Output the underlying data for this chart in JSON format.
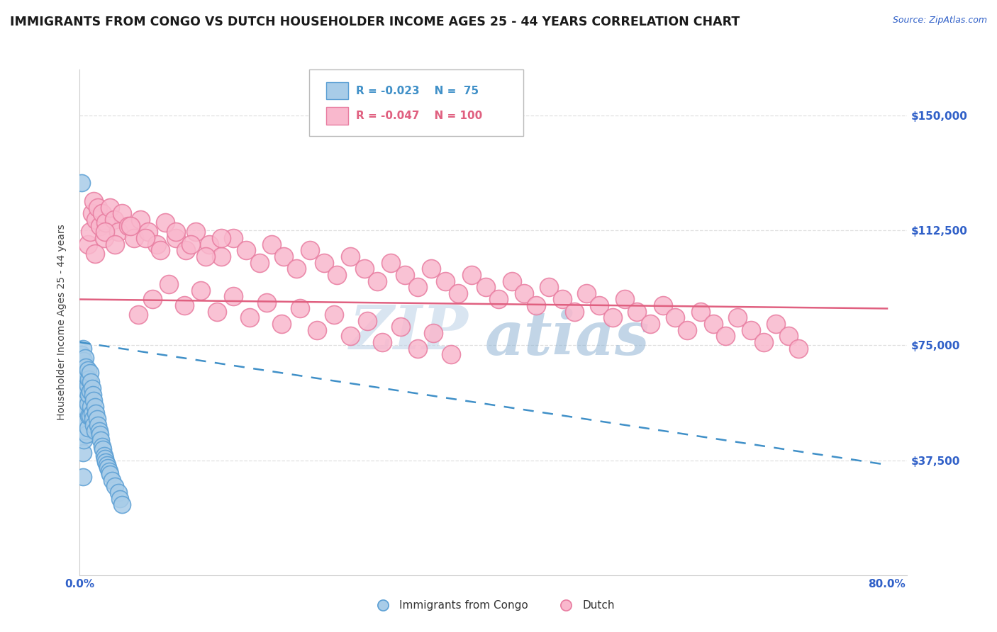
{
  "title": "IMMIGRANTS FROM CONGO VS DUTCH HOUSEHOLDER INCOME AGES 25 - 44 YEARS CORRELATION CHART",
  "source": "Source: ZipAtlas.com",
  "ylabel": "Householder Income Ages 25 - 44 years",
  "xlim": [
    0.0,
    0.82
  ],
  "ylim": [
    0,
    165000
  ],
  "ytick_vals": [
    0,
    37500,
    75000,
    112500,
    150000
  ],
  "ytick_labels": [
    "",
    "$37,500",
    "$75,000",
    "$112,500",
    "$150,000"
  ],
  "xtick_vals": [
    0.0,
    0.8
  ],
  "xtick_labels": [
    "0.0%",
    "80.0%"
  ],
  "legend_r1": "R = -0.023",
  "legend_n1": "N =  75",
  "legend_r2": "R = -0.047",
  "legend_n2": "N = 100",
  "color_congo_fill": "#a8cce8",
  "color_congo_edge": "#5b9fd4",
  "color_dutch_fill": "#f9b8cd",
  "color_dutch_edge": "#e87ca0",
  "color_trend_congo": "#4090c8",
  "color_trend_dutch": "#e06080",
  "background_color": "#ffffff",
  "title_fontsize": 12.5,
  "tick_label_color": "#3060c8",
  "grid_color": "#d8d8d8",
  "trend_congo_x0": 0.0,
  "trend_congo_x1": 0.8,
  "trend_congo_y0": 76000,
  "trend_congo_y1": 36000,
  "trend_dutch_x0": 0.0,
  "trend_dutch_x1": 0.8,
  "trend_dutch_y0": 90000,
  "trend_dutch_y1": 87000,
  "watermark_zip": "ZIP",
  "watermark_atlas": "atlas",
  "watermark_color_zip": "#b8cce0",
  "watermark_color_atlas": "#90b8d8",
  "bottom_legend_congo": "Immigrants from Congo",
  "bottom_legend_dutch": "Dutch",
  "congo_points_x": [
    0.001,
    0.001,
    0.001,
    0.001,
    0.002,
    0.002,
    0.002,
    0.002,
    0.002,
    0.003,
    0.003,
    0.003,
    0.003,
    0.003,
    0.003,
    0.004,
    0.004,
    0.004,
    0.004,
    0.004,
    0.005,
    0.005,
    0.005,
    0.005,
    0.005,
    0.006,
    0.006,
    0.006,
    0.006,
    0.007,
    0.007,
    0.007,
    0.007,
    0.008,
    0.008,
    0.008,
    0.008,
    0.009,
    0.009,
    0.009,
    0.01,
    0.01,
    0.01,
    0.011,
    0.011,
    0.012,
    0.012,
    0.013,
    0.013,
    0.014,
    0.014,
    0.015,
    0.015,
    0.016,
    0.017,
    0.018,
    0.019,
    0.02,
    0.021,
    0.022,
    0.023,
    0.024,
    0.025,
    0.026,
    0.027,
    0.028,
    0.029,
    0.03,
    0.032,
    0.035,
    0.038,
    0.04,
    0.042,
    0.002,
    0.003
  ],
  "congo_points_y": [
    68000,
    62000,
    58000,
    50000,
    72000,
    66000,
    60000,
    54000,
    45000,
    74000,
    69000,
    63000,
    57000,
    48000,
    40000,
    70000,
    65000,
    59000,
    52000,
    44000,
    71000,
    66000,
    61000,
    55000,
    47000,
    68000,
    63000,
    57000,
    50000,
    65000,
    60000,
    54000,
    46000,
    67000,
    62000,
    56000,
    48000,
    64000,
    59000,
    52000,
    66000,
    60000,
    52000,
    63000,
    55000,
    61000,
    53000,
    59000,
    51000,
    57000,
    49000,
    55000,
    47000,
    53000,
    51000,
    49000,
    47000,
    46000,
    44000,
    42000,
    41000,
    39000,
    38000,
    37000,
    36000,
    35000,
    34000,
    33000,
    31000,
    29000,
    27000,
    25000,
    23000,
    128000,
    32000
  ],
  "dutch_points_x": [
    0.008,
    0.01,
    0.012,
    0.014,
    0.016,
    0.018,
    0.02,
    0.022,
    0.024,
    0.026,
    0.03,
    0.034,
    0.038,
    0.042,
    0.048,
    0.054,
    0.06,
    0.068,
    0.076,
    0.085,
    0.095,
    0.105,
    0.115,
    0.128,
    0.14,
    0.152,
    0.165,
    0.178,
    0.19,
    0.202,
    0.215,
    0.228,
    0.242,
    0.255,
    0.268,
    0.282,
    0.295,
    0.308,
    0.322,
    0.335,
    0.348,
    0.362,
    0.375,
    0.388,
    0.402,
    0.415,
    0.428,
    0.44,
    0.452,
    0.465,
    0.478,
    0.49,
    0.502,
    0.515,
    0.528,
    0.54,
    0.552,
    0.565,
    0.578,
    0.59,
    0.602,
    0.615,
    0.628,
    0.64,
    0.652,
    0.665,
    0.678,
    0.69,
    0.702,
    0.712,
    0.015,
    0.025,
    0.035,
    0.05,
    0.065,
    0.08,
    0.095,
    0.11,
    0.125,
    0.14,
    0.058,
    0.072,
    0.088,
    0.104,
    0.12,
    0.136,
    0.152,
    0.168,
    0.185,
    0.2,
    0.218,
    0.235,
    0.252,
    0.268,
    0.285,
    0.3,
    0.318,
    0.335,
    0.35,
    0.368
  ],
  "dutch_points_y": [
    108000,
    112000,
    118000,
    122000,
    116000,
    120000,
    114000,
    118000,
    110000,
    115000,
    120000,
    116000,
    112000,
    118000,
    114000,
    110000,
    116000,
    112000,
    108000,
    115000,
    110000,
    106000,
    112000,
    108000,
    104000,
    110000,
    106000,
    102000,
    108000,
    104000,
    100000,
    106000,
    102000,
    98000,
    104000,
    100000,
    96000,
    102000,
    98000,
    94000,
    100000,
    96000,
    92000,
    98000,
    94000,
    90000,
    96000,
    92000,
    88000,
    94000,
    90000,
    86000,
    92000,
    88000,
    84000,
    90000,
    86000,
    82000,
    88000,
    84000,
    80000,
    86000,
    82000,
    78000,
    84000,
    80000,
    76000,
    82000,
    78000,
    74000,
    105000,
    112000,
    108000,
    114000,
    110000,
    106000,
    112000,
    108000,
    104000,
    110000,
    85000,
    90000,
    95000,
    88000,
    93000,
    86000,
    91000,
    84000,
    89000,
    82000,
    87000,
    80000,
    85000,
    78000,
    83000,
    76000,
    81000,
    74000,
    79000,
    72000
  ]
}
